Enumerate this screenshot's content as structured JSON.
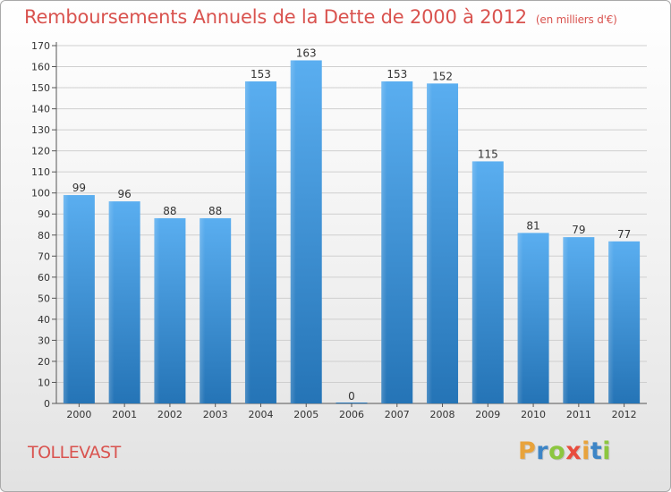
{
  "title": "Remboursements Annuels de la Dette de 2000 à 2012",
  "unit": "(en milliers d'€)",
  "commune": "TOLLEVAST",
  "logo": {
    "letters": [
      {
        "ch": "P",
        "color": "#e8a33c"
      },
      {
        "ch": "r",
        "color": "#3d85c6"
      },
      {
        "ch": "o",
        "color": "#8cc63f"
      },
      {
        "ch": "x",
        "color": "#e84c3d"
      },
      {
        "ch": "i",
        "color": "#e8a33c"
      },
      {
        "ch": "t",
        "color": "#3d85c6"
      },
      {
        "ch": "i",
        "color": "#8cc63f"
      }
    ]
  },
  "chart_data": {
    "type": "bar",
    "categories": [
      "2000",
      "2001",
      "2002",
      "2003",
      "2004",
      "2005",
      "2006",
      "2007",
      "2008",
      "2009",
      "2010",
      "2011",
      "2012"
    ],
    "values": [
      99,
      96,
      88,
      88,
      153,
      163,
      0,
      153,
      152,
      115,
      81,
      79,
      77
    ],
    "ylim": [
      0,
      170
    ],
    "yticks": [
      0,
      10,
      20,
      30,
      40,
      50,
      60,
      70,
      80,
      90,
      100,
      110,
      120,
      130,
      140,
      150,
      160,
      170
    ],
    "grid": true,
    "bar_color_top": "#5aaef0",
    "bar_color_bottom": "#2574b6"
  }
}
